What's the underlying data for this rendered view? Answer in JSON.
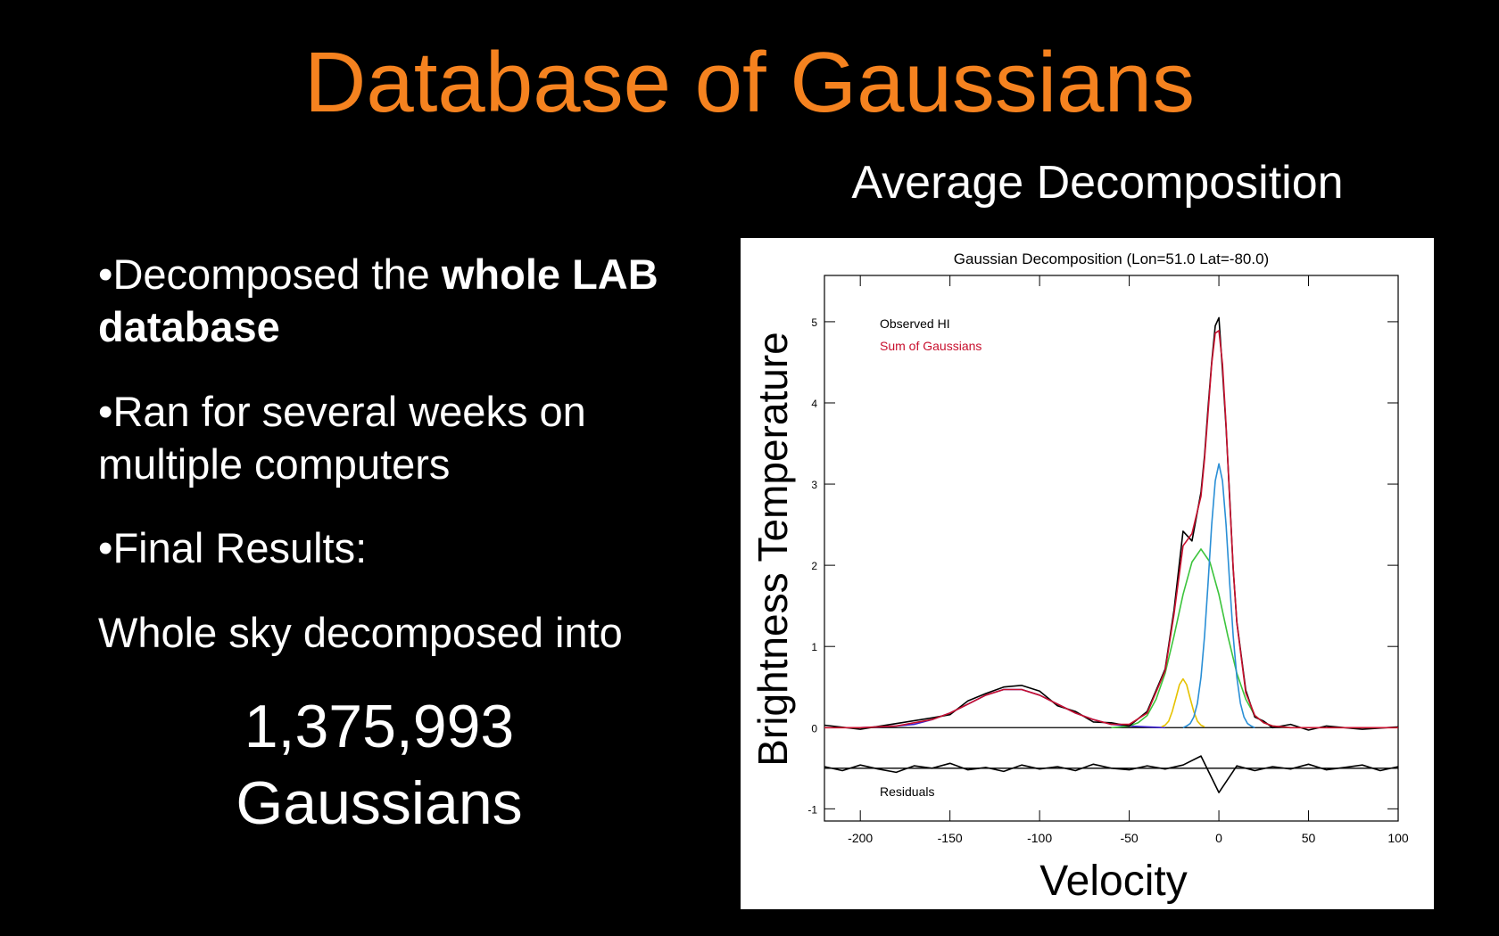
{
  "slide": {
    "title": "Database of Gaussians",
    "subtitle": "Average Decomposition",
    "bullets": [
      {
        "text": "Decomposed the ",
        "bold": "whole LAB database"
      },
      {
        "text": "Ran for several weeks on multiple computers"
      },
      {
        "text": "Final Results:"
      }
    ],
    "body": "Whole sky decomposed into",
    "result": [
      "1,375,993",
      "Gaussians"
    ]
  },
  "chart_data": {
    "type": "line",
    "title": "Gaussian Decomposition (Lon=51.0 Lat=-80.0)",
    "x_label": "Velocity",
    "y_label": "Brightness Temperature",
    "xlim": [
      -220,
      100
    ],
    "ylim": [
      -1.15,
      5.57
    ],
    "xticks": [
      -200,
      -150,
      -100,
      -50,
      0,
      50,
      100
    ],
    "yticks": [
      -1,
      0,
      1,
      2,
      3,
      4,
      5
    ],
    "hlines": [
      0,
      -0.5
    ],
    "residuals_label": "Residuals",
    "series": [
      {
        "name": "Observed HI",
        "color": "#000000",
        "x": [
          -220,
          -200,
          -180,
          -160,
          -150,
          -140,
          -130,
          -120,
          -110,
          -100,
          -90,
          -80,
          -70,
          -60,
          -50,
          -40,
          -30,
          -25,
          -20,
          -15,
          -10,
          -8,
          -6,
          -4,
          -2,
          0,
          2,
          4,
          6,
          8,
          10,
          15,
          20,
          25,
          30,
          40,
          50,
          60,
          80,
          100
        ],
        "values": [
          0.03,
          -0.02,
          0.05,
          0.12,
          0.16,
          0.33,
          0.42,
          0.5,
          0.52,
          0.45,
          0.27,
          0.2,
          0.07,
          0.06,
          0.02,
          0.2,
          0.72,
          1.45,
          2.42,
          2.3,
          2.9,
          3.35,
          3.95,
          4.5,
          4.95,
          5.05,
          4.4,
          3.7,
          2.85,
          1.95,
          1.3,
          0.46,
          0.13,
          0.08,
          0.0,
          0.04,
          -0.03,
          0.02,
          -0.02,
          0.01
        ]
      },
      {
        "name": "Sum of Gaussians",
        "color": "#c8102e",
        "x": [
          -220,
          -200,
          -180,
          -160,
          -150,
          -140,
          -130,
          -120,
          -110,
          -100,
          -90,
          -80,
          -70,
          -60,
          -50,
          -40,
          -30,
          -25,
          -20,
          -15,
          -10,
          -8,
          -6,
          -4,
          -2,
          0,
          2,
          4,
          6,
          8,
          10,
          15,
          20,
          25,
          30,
          40,
          50,
          60,
          80,
          100
        ],
        "values": [
          0.0,
          0.0,
          0.02,
          0.1,
          0.18,
          0.29,
          0.4,
          0.47,
          0.47,
          0.4,
          0.29,
          0.18,
          0.1,
          0.04,
          0.04,
          0.18,
          0.7,
          1.4,
          2.24,
          2.39,
          2.85,
          3.31,
          3.89,
          4.48,
          4.86,
          4.89,
          4.48,
          3.73,
          2.82,
          1.97,
          1.29,
          0.43,
          0.15,
          0.06,
          0.02,
          0.0,
          0.0,
          0.0,
          0.0,
          0.0
        ]
      },
      {
        "color": "#3b1fd1",
        "x": [
          -200,
          -190,
          -180,
          -170,
          -160,
          -150,
          -140,
          -130,
          -120,
          -110,
          -100,
          -90,
          -80,
          -70,
          -60,
          -50,
          -40,
          -30
        ],
        "values": [
          0.0,
          0.01,
          0.02,
          0.04,
          0.1,
          0.18,
          0.29,
          0.4,
          0.47,
          0.47,
          0.4,
          0.29,
          0.18,
          0.1,
          0.04,
          0.02,
          0.01,
          0.0
        ]
      },
      {
        "color": "#e6c200",
        "x": [
          -32,
          -30,
          -28,
          -26,
          -24,
          -22,
          -20,
          -18,
          -16,
          -14,
          -12,
          -10,
          -8
        ],
        "values": [
          0.01,
          0.03,
          0.08,
          0.2,
          0.36,
          0.53,
          0.6,
          0.53,
          0.36,
          0.2,
          0.08,
          0.03,
          0.01
        ]
      },
      {
        "color": "#3cc43c",
        "x": [
          -60,
          -55,
          -50,
          -45,
          -40,
          -35,
          -30,
          -25,
          -20,
          -15,
          -10,
          -5,
          0,
          5,
          10,
          15,
          20,
          25,
          30,
          35,
          40
        ],
        "values": [
          0.0,
          0.01,
          0.02,
          0.06,
          0.15,
          0.35,
          0.67,
          1.13,
          1.64,
          2.04,
          2.2,
          2.04,
          1.64,
          1.13,
          0.67,
          0.35,
          0.15,
          0.06,
          0.02,
          0.01,
          0.0
        ]
      },
      {
        "color": "#2a8fd6",
        "x": [
          -20,
          -18,
          -16,
          -14,
          -12,
          -10,
          -8,
          -6,
          -4,
          -2,
          0,
          2,
          4,
          6,
          8,
          10,
          12,
          14,
          16,
          18,
          20
        ],
        "values": [
          0.0,
          0.02,
          0.05,
          0.13,
          0.3,
          0.62,
          1.13,
          1.79,
          2.5,
          3.04,
          3.25,
          3.04,
          2.5,
          1.79,
          1.13,
          0.62,
          0.3,
          0.13,
          0.05,
          0.02,
          0.0
        ]
      },
      {
        "color": "#000000",
        "x": [
          -220,
          -210,
          -200,
          -190,
          -180,
          -170,
          -160,
          -150,
          -140,
          -130,
          -120,
          -110,
          -100,
          -90,
          -80,
          -70,
          -60,
          -50,
          -40,
          -30,
          -20,
          -10,
          0,
          10,
          20,
          30,
          40,
          50,
          60,
          70,
          80,
          90,
          100
        ],
        "values": [
          -0.48,
          -0.53,
          -0.46,
          -0.51,
          -0.55,
          -0.47,
          -0.5,
          -0.44,
          -0.52,
          -0.49,
          -0.54,
          -0.46,
          -0.51,
          -0.48,
          -0.53,
          -0.45,
          -0.5,
          -0.52,
          -0.47,
          -0.51,
          -0.46,
          -0.35,
          -0.8,
          -0.47,
          -0.53,
          -0.48,
          -0.51,
          -0.45,
          -0.52,
          -0.49,
          -0.46,
          -0.53,
          -0.48
        ]
      }
    ]
  }
}
